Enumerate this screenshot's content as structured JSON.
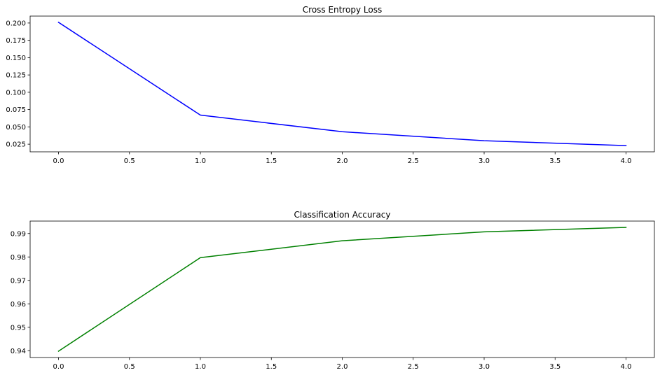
{
  "chart_data": [
    {
      "type": "line",
      "title": "Cross Entropy Loss",
      "xlabel": "",
      "ylabel": "",
      "x": [
        0,
        1,
        2,
        3,
        4
      ],
      "series": [
        {
          "values": [
            0.201,
            0.067,
            0.043,
            0.03,
            0.023
          ],
          "color": "#0000ff"
        }
      ],
      "xlim": [
        -0.2,
        4.2
      ],
      "ylim": [
        0.014,
        0.21
      ],
      "xticks": [
        0.0,
        0.5,
        1.0,
        1.5,
        2.0,
        2.5,
        3.0,
        3.5,
        4.0
      ],
      "xtick_labels": [
        "0.0",
        "0.5",
        "1.0",
        "1.5",
        "2.0",
        "2.5",
        "3.0",
        "3.5",
        "4.0"
      ],
      "yticks": [
        0.025,
        0.05,
        0.075,
        0.1,
        0.125,
        0.15,
        0.175,
        0.2
      ],
      "ytick_labels": [
        "0.025",
        "0.050",
        "0.075",
        "0.100",
        "0.125",
        "0.150",
        "0.175",
        "0.200"
      ],
      "grid": false,
      "legend": "none"
    },
    {
      "type": "line",
      "title": "Classification Accuracy",
      "xlabel": "",
      "ylabel": "",
      "x": [
        0,
        1,
        2,
        3,
        4
      ],
      "series": [
        {
          "values": [
            0.9398,
            0.9797,
            0.9869,
            0.9907,
            0.9926
          ],
          "color": "#008000"
        }
      ],
      "xlim": [
        -0.2,
        4.2
      ],
      "ylim": [
        0.9371,
        0.9953
      ],
      "xticks": [
        0.0,
        0.5,
        1.0,
        1.5,
        2.0,
        2.5,
        3.0,
        3.5,
        4.0
      ],
      "xtick_labels": [
        "0.0",
        "0.5",
        "1.0",
        "1.5",
        "2.0",
        "2.5",
        "3.0",
        "3.5",
        "4.0"
      ],
      "yticks": [
        0.94,
        0.95,
        0.96,
        0.97,
        0.98,
        0.99
      ],
      "ytick_labels": [
        "0.94",
        "0.95",
        "0.96",
        "0.97",
        "0.98",
        "0.99"
      ],
      "grid": false,
      "legend": "none"
    }
  ]
}
